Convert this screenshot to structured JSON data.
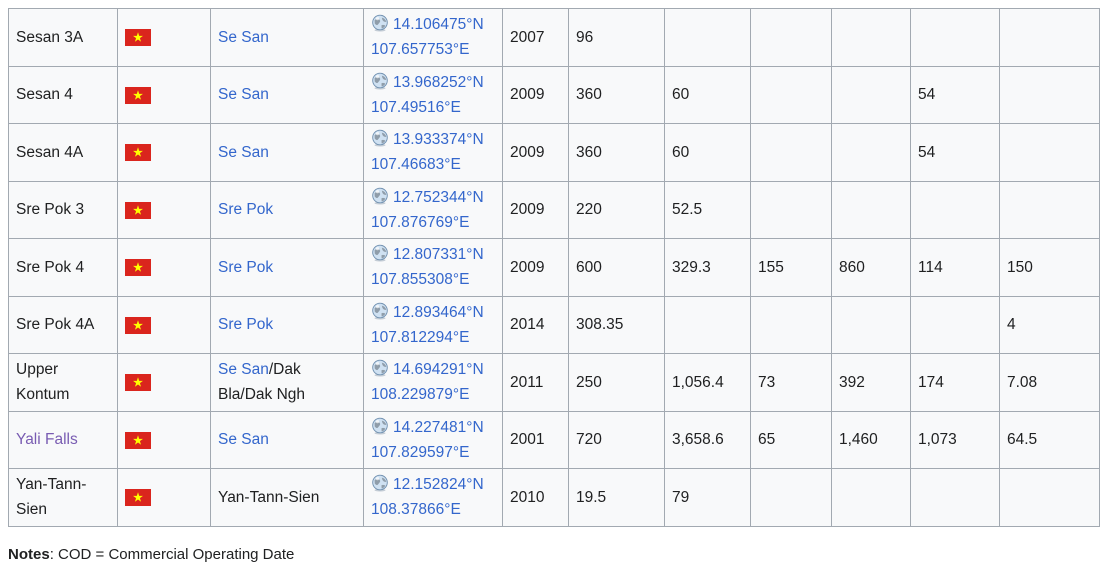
{
  "colors": {
    "text": "#202122",
    "link": "#3366cc",
    "visited_link": "#795cb2",
    "cell_background": "#f8f9fa",
    "border": "#a2a9b1",
    "flag_red": "#da251d",
    "flag_star": "#ffff00"
  },
  "icons": {
    "country_flag": "vietnam-flag-icon",
    "coordinates": "globe-icon"
  },
  "rows": [
    {
      "name": "Sesan 3A",
      "name_is_link": false,
      "country_flag": "vietnam-flag-icon",
      "river": {
        "link": "Se San",
        "text": ""
      },
      "coordinates": {
        "lat": "14.106475°N",
        "lon": "107.657753°E"
      },
      "year": "2007",
      "values": [
        "96",
        "",
        "",
        "",
        "",
        ""
      ]
    },
    {
      "name": "Sesan 4",
      "name_is_link": false,
      "country_flag": "vietnam-flag-icon",
      "river": {
        "link": "Se San",
        "text": ""
      },
      "coordinates": {
        "lat": "13.968252°N",
        "lon": "107.49516°E"
      },
      "year": "2009",
      "values": [
        "360",
        "60",
        "",
        "",
        "54",
        ""
      ]
    },
    {
      "name": "Sesan 4A",
      "name_is_link": false,
      "country_flag": "vietnam-flag-icon",
      "river": {
        "link": "Se San",
        "text": ""
      },
      "coordinates": {
        "lat": "13.933374°N",
        "lon": "107.46683°E"
      },
      "year": "2009",
      "values": [
        "360",
        "60",
        "",
        "",
        "54",
        ""
      ]
    },
    {
      "name": "Sre Pok 3",
      "name_is_link": false,
      "country_flag": "vietnam-flag-icon",
      "river": {
        "link": "Sre Pok",
        "text": ""
      },
      "coordinates": {
        "lat": "12.752344°N",
        "lon": "107.876769°E"
      },
      "year": "2009",
      "values": [
        "220",
        "52.5",
        "",
        "",
        "",
        ""
      ]
    },
    {
      "name": "Sre Pok 4",
      "name_is_link": false,
      "country_flag": "vietnam-flag-icon",
      "river": {
        "link": "Sre Pok",
        "text": ""
      },
      "coordinates": {
        "lat": "12.807331°N",
        "lon": "107.855308°E"
      },
      "year": "2009",
      "values": [
        "600",
        "329.3",
        "155",
        "860",
        "114",
        "150"
      ]
    },
    {
      "name": "Sre Pok 4A",
      "name_is_link": false,
      "country_flag": "vietnam-flag-icon",
      "river": {
        "link": "Sre Pok",
        "text": ""
      },
      "coordinates": {
        "lat": "12.893464°N",
        "lon": "107.812294°E"
      },
      "year": "2014",
      "values": [
        "308.35",
        "",
        "",
        "",
        "",
        "4"
      ]
    },
    {
      "name": "Upper Kontum",
      "name_is_link": false,
      "country_flag": "vietnam-flag-icon",
      "river": {
        "link": "Se San",
        "text": "/Dak Bla/Dak Ngh"
      },
      "coordinates": {
        "lat": "14.694291°N",
        "lon": "108.229879°E"
      },
      "year": "2011",
      "values": [
        "250",
        "1,056.4",
        "73",
        "392",
        "174",
        "7.08"
      ]
    },
    {
      "name": "Yali Falls",
      "name_is_link": true,
      "country_flag": "vietnam-flag-icon",
      "river": {
        "link": "Se San",
        "text": ""
      },
      "coordinates": {
        "lat": "14.227481°N",
        "lon": "107.829597°E"
      },
      "year": "2001",
      "values": [
        "720",
        "3,658.6",
        "65",
        "1,460",
        "1,073",
        "64.5"
      ]
    },
    {
      "name": "Yan-Tann-Sien",
      "name_is_link": false,
      "country_flag": "vietnam-flag-icon",
      "river": {
        "link": "",
        "text": "Yan-Tann-Sien"
      },
      "coordinates": {
        "lat": "12.152824°N",
        "lon": "108.37866°E"
      },
      "year": "2010",
      "values": [
        "19.5",
        "79",
        "",
        "",
        "",
        ""
      ]
    }
  ],
  "notes": {
    "label": "Notes",
    "text": ": COD = Commercial Operating Date"
  }
}
